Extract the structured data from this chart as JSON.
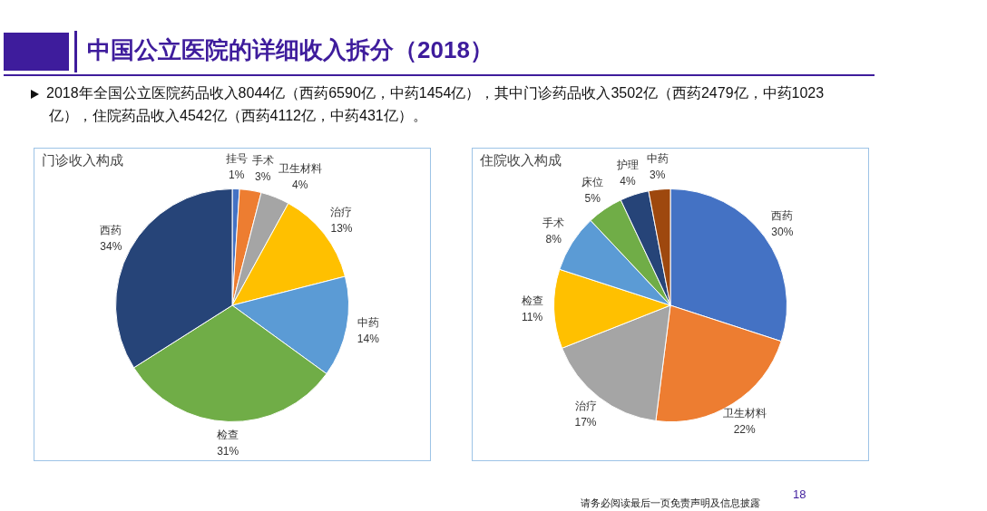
{
  "chart_data": [
    {
      "type": "other",
      "title": "中国公立医院的详细收入拆分（2018）",
      "subtitle": "2018年全国公立医院药品收入8044亿（西药6590亿，中药1454亿），其中门诊药品收入3502亿（西药2479亿，中药1023亿），住院药品收入4542亿（西药4112亿，中药431亿）。",
      "annotations": [
        "18",
        "请务必阅读最后一页免责声明及信息披露"
      ]
    },
    {
      "type": "pie",
      "title": "门诊收入构成",
      "categories": [
        "挂号",
        "手术",
        "卫生材料",
        "治疗",
        "中药",
        "检查",
        "西药"
      ],
      "values": [
        1,
        3,
        4,
        13,
        14,
        31,
        34
      ],
      "value_labels": [
        "1%",
        "3%",
        "4%",
        "13%",
        "14%",
        "31%",
        "34%"
      ],
      "colors": [
        "#4472c4",
        "#ed7d31",
        "#a5a5a5",
        "#ffc000",
        "#5b9bd5",
        "#70ad47",
        "#264478"
      ],
      "legend": false
    },
    {
      "type": "pie",
      "title": "住院收入构成",
      "categories": [
        "西药",
        "卫生材料",
        "治疗",
        "检查",
        "手术",
        "床位",
        "护理",
        "中药"
      ],
      "values": [
        30,
        22,
        17,
        11,
        8,
        5,
        4,
        3
      ],
      "value_labels": [
        "30%",
        "22%",
        "17%",
        "11%",
        "8%",
        "5%",
        "4%",
        "3%"
      ],
      "colors": [
        "#4472c4",
        "#ed7d31",
        "#a5a5a5",
        "#ffc000",
        "#5b9bd5",
        "#70ad47",
        "#264478",
        "#9e480e"
      ],
      "legend": false
    }
  ]
}
